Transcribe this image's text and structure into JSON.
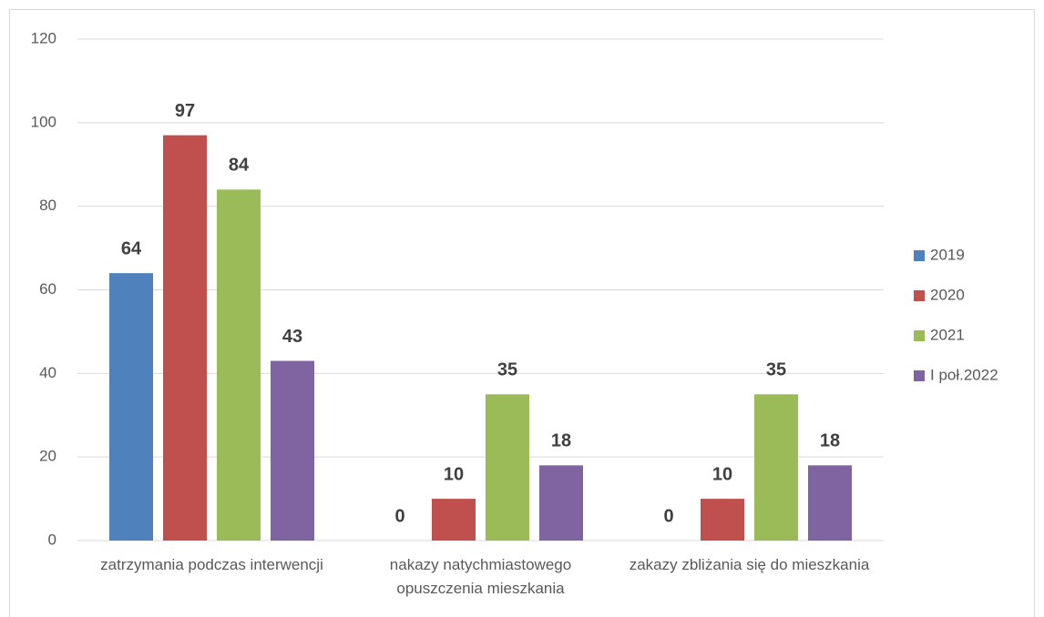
{
  "chart_data": {
    "type": "bar",
    "categories": [
      "zatrzymania podczas interwencji",
      "nakazy natychmiastowego opuszczenia mieszkania",
      "zakazy zbliżania się do mieszkania"
    ],
    "series": [
      {
        "name": "2019",
        "color": "#4f81bd",
        "values": [
          64,
          0,
          0
        ]
      },
      {
        "name": "2020",
        "color": "#c0504d",
        "values": [
          97,
          10,
          10
        ]
      },
      {
        "name": "2021",
        "color": "#9bbb59",
        "values": [
          84,
          35,
          35
        ]
      },
      {
        "name": "I poł.2022",
        "color": "#8064a2",
        "values": [
          43,
          18,
          18
        ]
      }
    ],
    "ylim": [
      0,
      120
    ],
    "yticks": [
      0,
      20,
      40,
      60,
      80,
      100,
      120
    ],
    "grid": true,
    "legend": "right"
  }
}
